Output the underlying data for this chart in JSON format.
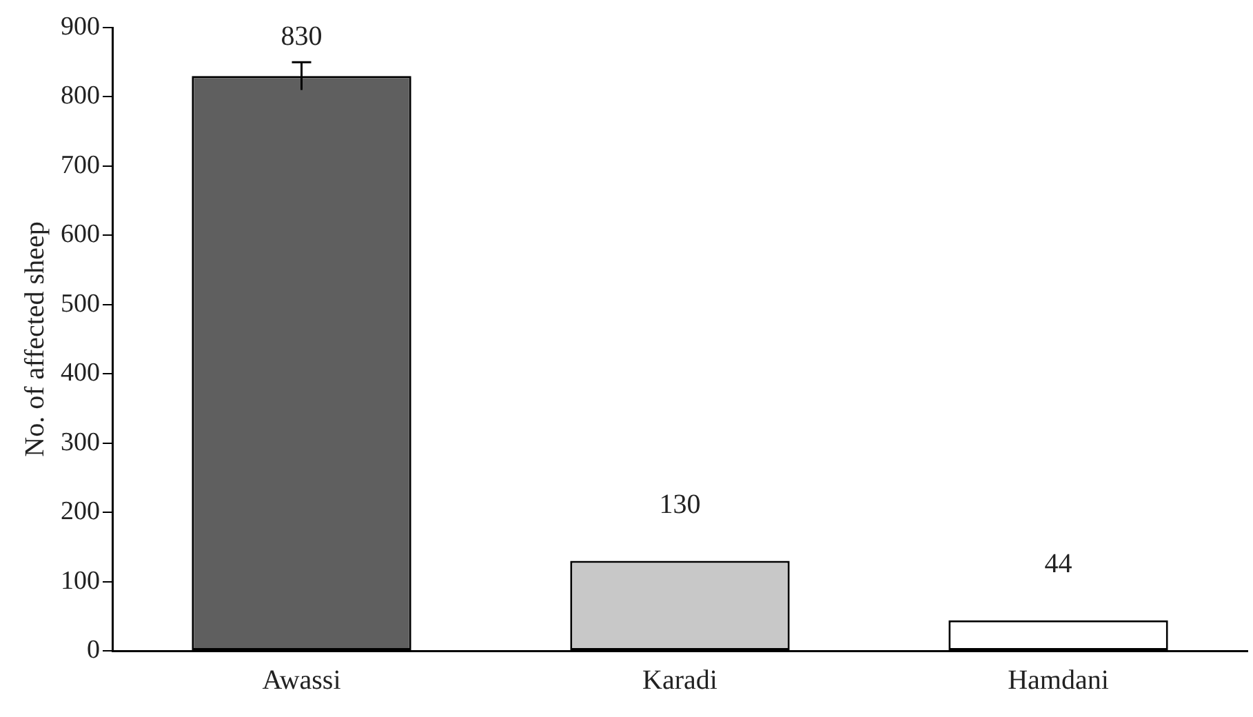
{
  "chart_data": {
    "type": "bar",
    "ylabel": "No. of affected sheep",
    "categories": [
      "Awassi",
      "Karadi",
      "Hamdani"
    ],
    "values": [
      830,
      130,
      44
    ],
    "colors": [
      "#5f5f5f",
      "#c8c8c8",
      "#ffffff"
    ],
    "errors": [
      20,
      null,
      null
    ],
    "data_labels": true,
    "ylim": [
      0,
      900
    ],
    "yticks": [
      0,
      100,
      200,
      300,
      400,
      500,
      600,
      700,
      800,
      900
    ],
    "grid": false,
    "legend": false
  }
}
